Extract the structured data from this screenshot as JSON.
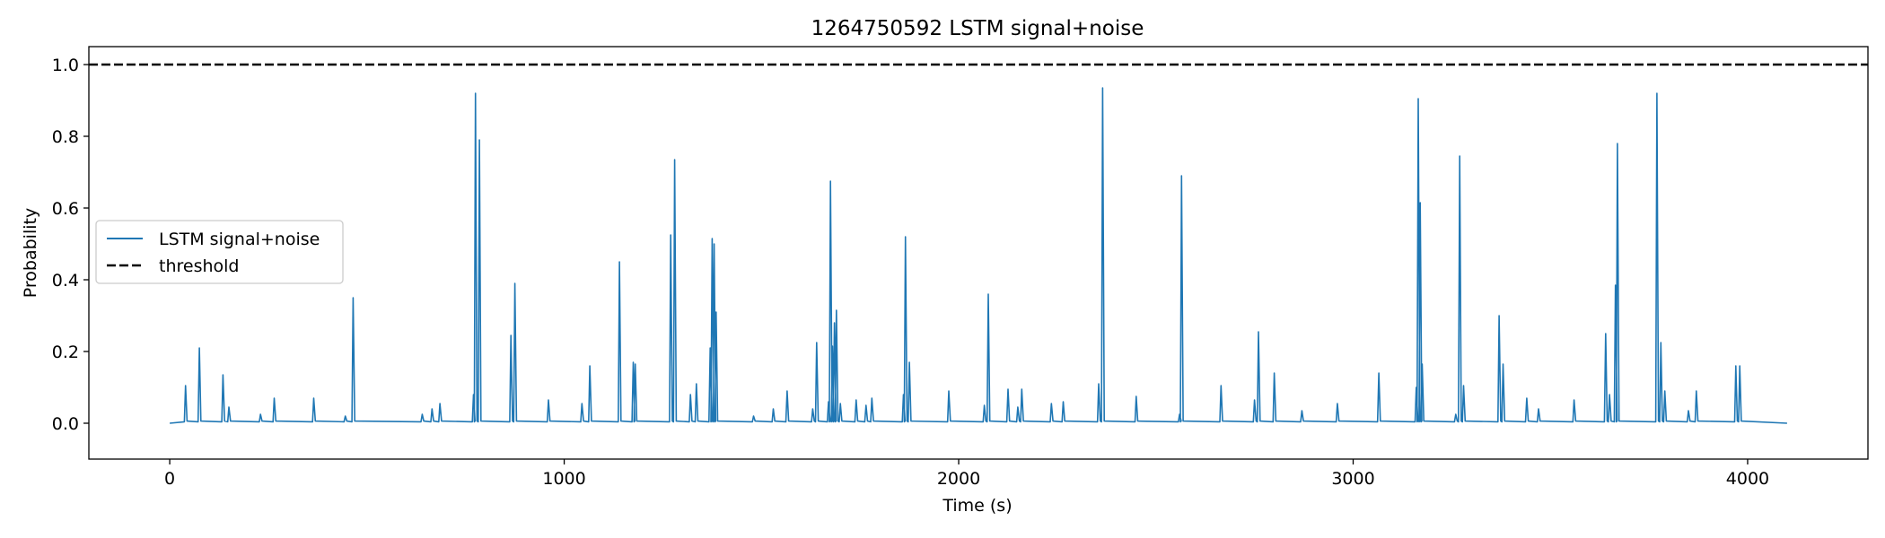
{
  "chart_data": {
    "type": "line",
    "title": "1264750592 LSTM signal+noise",
    "xlabel": "Time (s)",
    "ylabel": "Probability",
    "xlim": [
      -205,
      4305
    ],
    "ylim": [
      -0.1,
      1.05
    ],
    "xticks": [
      0,
      1000,
      2000,
      3000,
      4000
    ],
    "xtick_labels": [
      "0",
      "1000",
      "2000",
      "3000",
      "4000"
    ],
    "yticks": [
      0.0,
      0.2,
      0.4,
      0.6,
      0.8,
      1.0
    ],
    "ytick_labels": [
      "0.0",
      "0.2",
      "0.4",
      "0.6",
      "0.8",
      "1.0"
    ],
    "grid": false,
    "legend": {
      "placement": "center-left",
      "entries": [
        "LSTM signal+noise",
        "threshold"
      ]
    },
    "colors": {
      "signal": "#1f77b4",
      "threshold": "#000000"
    },
    "threshold": {
      "name": "threshold",
      "y": 1.0,
      "style": "dashed"
    },
    "series": [
      {
        "name": "LSTM signal+noise",
        "baseline": 0.0,
        "x_range": [
          0,
          4100
        ],
        "peaks": [
          [
            40,
            0.105
          ],
          [
            75,
            0.21
          ],
          [
            135,
            0.135
          ],
          [
            150,
            0.045
          ],
          [
            230,
            0.025
          ],
          [
            265,
            0.07
          ],
          [
            365,
            0.07
          ],
          [
            445,
            0.02
          ],
          [
            465,
            0.35
          ],
          [
            640,
            0.025
          ],
          [
            665,
            0.04
          ],
          [
            685,
            0.055
          ],
          [
            770,
            0.08
          ],
          [
            775,
            0.92
          ],
          [
            785,
            0.79
          ],
          [
            865,
            0.245
          ],
          [
            875,
            0.39
          ],
          [
            960,
            0.065
          ],
          [
            1045,
            0.055
          ],
          [
            1065,
            0.16
          ],
          [
            1140,
            0.45
          ],
          [
            1175,
            0.17
          ],
          [
            1180,
            0.165
          ],
          [
            1270,
            0.525
          ],
          [
            1280,
            0.735
          ],
          [
            1320,
            0.08
          ],
          [
            1335,
            0.11
          ],
          [
            1370,
            0.21
          ],
          [
            1375,
            0.515
          ],
          [
            1380,
            0.5
          ],
          [
            1385,
            0.31
          ],
          [
            1480,
            0.02
          ],
          [
            1530,
            0.04
          ],
          [
            1565,
            0.09
          ],
          [
            1630,
            0.04
          ],
          [
            1640,
            0.225
          ],
          [
            1670,
            0.06
          ],
          [
            1675,
            0.675
          ],
          [
            1680,
            0.215
          ],
          [
            1685,
            0.28
          ],
          [
            1690,
            0.315
          ],
          [
            1700,
            0.055
          ],
          [
            1740,
            0.065
          ],
          [
            1765,
            0.05
          ],
          [
            1780,
            0.07
          ],
          [
            1860,
            0.08
          ],
          [
            1865,
            0.52
          ],
          [
            1875,
            0.17
          ],
          [
            1975,
            0.09
          ],
          [
            2065,
            0.05
          ],
          [
            2075,
            0.36
          ],
          [
            2125,
            0.095
          ],
          [
            2150,
            0.045
          ],
          [
            2160,
            0.095
          ],
          [
            2235,
            0.055
          ],
          [
            2265,
            0.06
          ],
          [
            2355,
            0.11
          ],
          [
            2365,
            0.935
          ],
          [
            2450,
            0.075
          ],
          [
            2560,
            0.025
          ],
          [
            2565,
            0.69
          ],
          [
            2665,
            0.105
          ],
          [
            2750,
            0.065
          ],
          [
            2760,
            0.255
          ],
          [
            2800,
            0.14
          ],
          [
            2870,
            0.035
          ],
          [
            2960,
            0.055
          ],
          [
            3065,
            0.14
          ],
          [
            3160,
            0.1
          ],
          [
            3165,
            0.905
          ],
          [
            3170,
            0.615
          ],
          [
            3175,
            0.165
          ],
          [
            3260,
            0.025
          ],
          [
            3270,
            0.745
          ],
          [
            3280,
            0.105
          ],
          [
            3370,
            0.3
          ],
          [
            3380,
            0.165
          ],
          [
            3440,
            0.07
          ],
          [
            3470,
            0.04
          ],
          [
            3560,
            0.065
          ],
          [
            3640,
            0.25
          ],
          [
            3650,
            0.08
          ],
          [
            3665,
            0.385
          ],
          [
            3670,
            0.78
          ],
          [
            3770,
            0.92
          ],
          [
            3780,
            0.225
          ],
          [
            3790,
            0.09
          ],
          [
            3850,
            0.035
          ],
          [
            3870,
            0.09
          ],
          [
            3970,
            0.16
          ],
          [
            3980,
            0.16
          ]
        ]
      }
    ]
  }
}
